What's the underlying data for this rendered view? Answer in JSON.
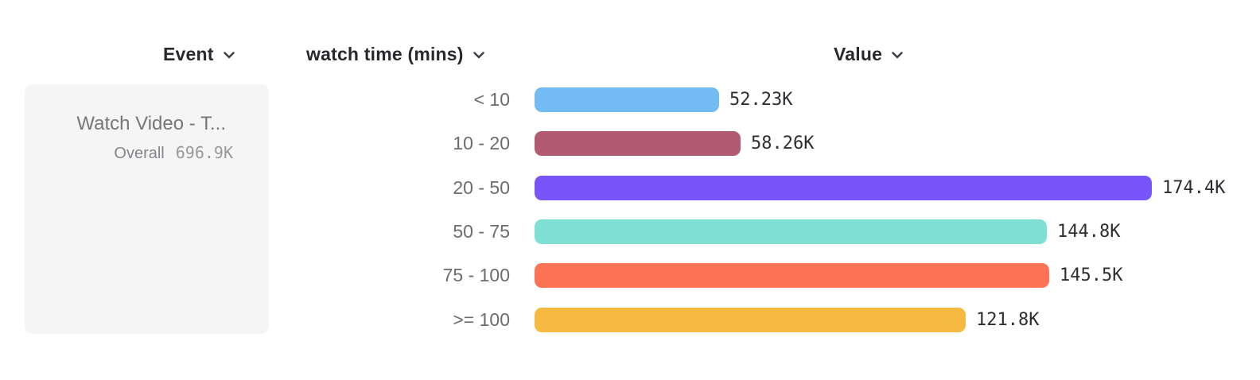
{
  "header": {
    "columns": [
      {
        "id": "event",
        "label": "Event"
      },
      {
        "id": "breakdown",
        "label": "watch time (mins)"
      },
      {
        "id": "value",
        "label": "Value"
      }
    ]
  },
  "icons": {
    "sort_chevron": {
      "name": "chevron-down",
      "glyph": "⌄",
      "color": "#3c3c42"
    }
  },
  "event_panel": {
    "title": "Watch Video - T...",
    "overall_label": "Overall",
    "overall_value": "696.9K"
  },
  "chart_data": {
    "type": "bar",
    "orientation": "horizontal",
    "title": "",
    "xlabel": "Value",
    "ylabel": "watch time (mins)",
    "grid": false,
    "legend": false,
    "xlim": [
      0,
      174.4
    ],
    "categories": [
      "< 10",
      "10 - 20",
      "20 - 50",
      "50 - 75",
      "75 - 100",
      ">= 100"
    ],
    "values": [
      52.23,
      58.26,
      174.4,
      144.8,
      145.5,
      121.8
    ],
    "value_labels": [
      "52.23K",
      "58.26K",
      "174.4K",
      "144.8K",
      "145.5K",
      "121.8K"
    ],
    "bar_colors": [
      "#73bcf3",
      "#b15a71",
      "#7854fa",
      "#7de0d2",
      "#fc7356",
      "#f6ba42"
    ]
  }
}
